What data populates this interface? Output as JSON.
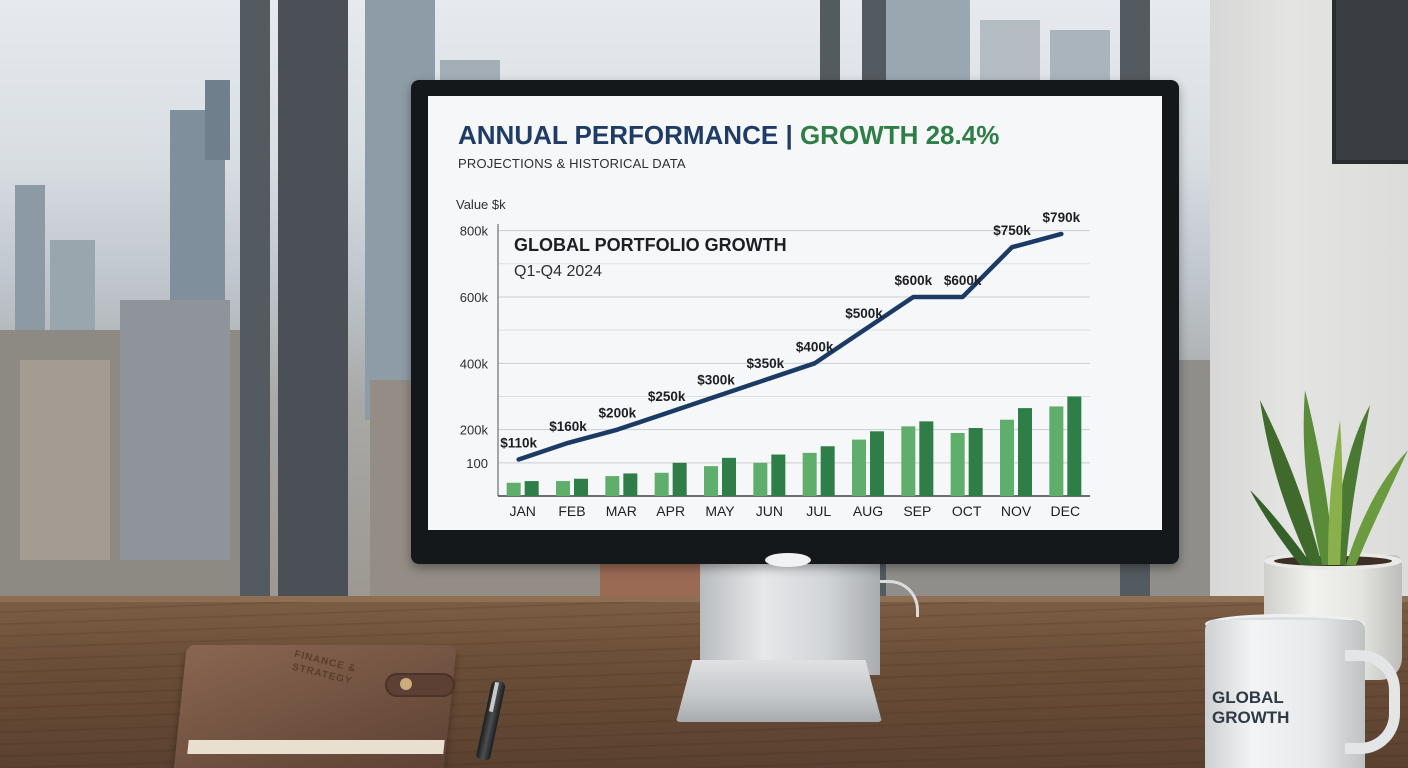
{
  "screen": {
    "title_main": "ANNUAL PERFORMANCE",
    "title_separator": "|",
    "title_growth": "GROWTH 28.4%",
    "subtitle": "PROJECTIONS & HISTORICAL DATA"
  },
  "chart_data": {
    "type": "bar",
    "title": "GLOBAL PORTFOLIO GROWTH",
    "subtitle": "Q1-Q4 2024",
    "ylabel": "Value $k",
    "xlabel": "",
    "categories": [
      "JAN",
      "FEB",
      "MAR",
      "APR",
      "MAY",
      "JUN",
      "JUL",
      "AUG",
      "SEP",
      "OCT",
      "NOV",
      "DEC"
    ],
    "y_ticks": [
      {
        "value": 100,
        "label": "100"
      },
      {
        "value": 200,
        "label": "200k"
      },
      {
        "value": 400,
        "label": "400k"
      },
      {
        "value": 600,
        "label": "600k"
      },
      {
        "value": 800,
        "label": "800k"
      }
    ],
    "ylim": [
      0,
      820
    ],
    "grid": true,
    "line": {
      "values": [
        110,
        160,
        200,
        250,
        300,
        350,
        400,
        500,
        600,
        600,
        750,
        790
      ],
      "labels": [
        "$110k",
        "$160k",
        "$200k",
        "$250k",
        "$300k",
        "$350k",
        "$400k",
        "$500k",
        "$600k",
        "$600k",
        "$750k",
        "$790k"
      ],
      "color": "#1b3a64"
    },
    "bar_series": [
      {
        "values": [
          40,
          45,
          60,
          70,
          90,
          100,
          130,
          170,
          210,
          190,
          230,
          270
        ],
        "color": "#5fae6b"
      },
      {
        "values": [
          45,
          52,
          68,
          100,
          115,
          125,
          150,
          195,
          225,
          205,
          265,
          300
        ],
        "color": "#2f7d47"
      }
    ]
  },
  "mug": {
    "text_line1": "GLOBAL",
    "text_line2": "GROWTH"
  },
  "notebook": {
    "emboss_line1": "FINANCE &",
    "emboss_line2": "STRATEGY"
  },
  "colors": {
    "title_blue": "#1f3c66",
    "accent_green": "#2f7d47"
  }
}
